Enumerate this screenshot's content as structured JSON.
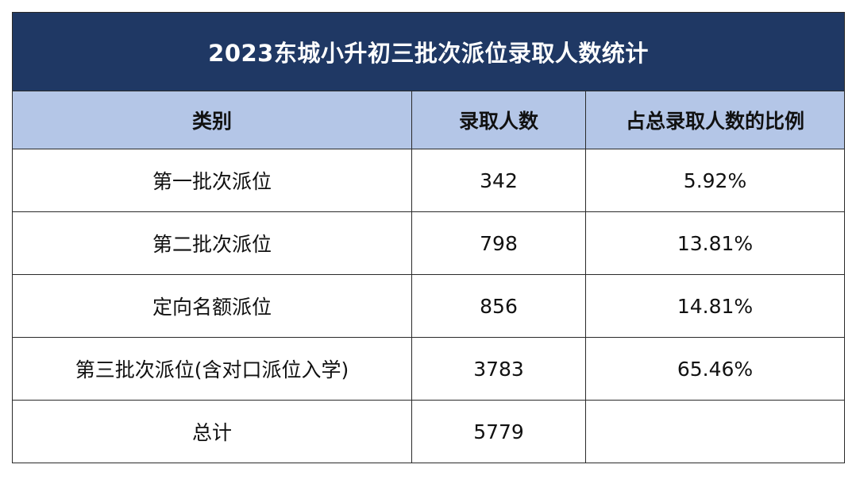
{
  "table": {
    "title": "2023东城小升初三批次派位录取人数统计",
    "headers": [
      "类别",
      "录取人数",
      "占总录取人数的比例"
    ],
    "rows": [
      {
        "category": "第一批次派位",
        "count": "342",
        "ratio": "5.92%"
      },
      {
        "category": "第二批次派位",
        "count": "798",
        "ratio": "13.81%"
      },
      {
        "category": "定向名额派位",
        "count": "856",
        "ratio": "14.81%"
      },
      {
        "category": "第三批次派位(含对口派位入学)",
        "count": "3783",
        "ratio": "65.46%"
      },
      {
        "category": "总计",
        "count": "5779",
        "ratio": ""
      }
    ]
  },
  "colors": {
    "title_bg": "#1f3864",
    "header_bg": "#b4c6e7",
    "border": "#2a2a2a"
  }
}
